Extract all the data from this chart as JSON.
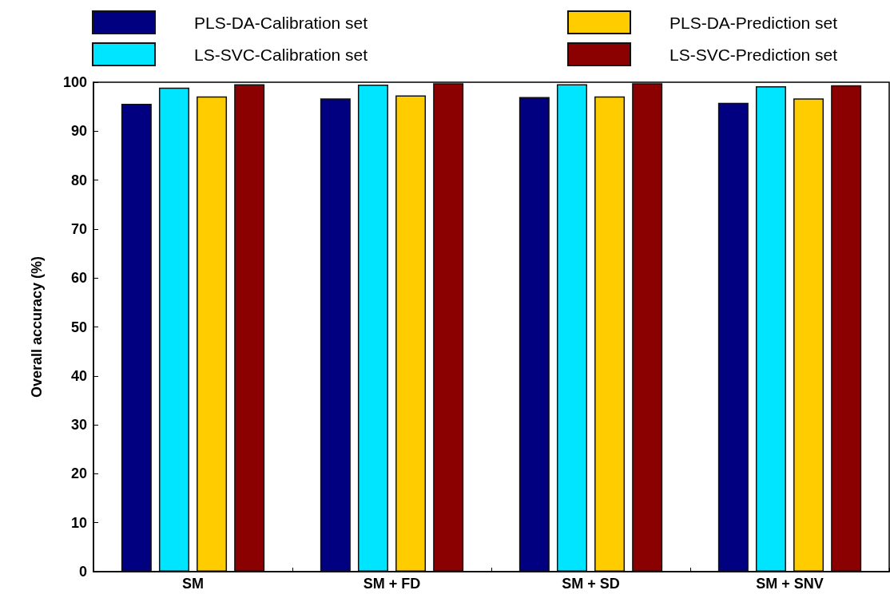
{
  "chart_data": {
    "type": "bar",
    "ylabel": "Overall accuracy (%)",
    "categories": [
      "SM",
      "SM + FD",
      "SM + SD",
      "SM + SNV"
    ],
    "series": [
      {
        "name": "PLS-DA-Calibration set",
        "color": "#000080",
        "values": [
          95.6,
          96.7,
          97.0,
          95.8
        ]
      },
      {
        "name": "LS-SVC-Calibration set",
        "color": "#00e5ff",
        "values": [
          98.9,
          99.5,
          99.6,
          99.2
        ]
      },
      {
        "name": "PLS-DA-Prediction set",
        "color": "#ffcc00",
        "values": [
          97.1,
          97.3,
          97.1,
          96.7
        ]
      },
      {
        "name": "LS-SVC-Prediction set",
        "color": "#8b0000",
        "values": [
          99.6,
          99.8,
          99.8,
          99.4
        ]
      }
    ],
    "ylim": [
      0,
      100
    ],
    "yticks": [
      0,
      10,
      20,
      30,
      40,
      50,
      60,
      70,
      80,
      90,
      100
    ],
    "grid": false,
    "legend": "top"
  }
}
